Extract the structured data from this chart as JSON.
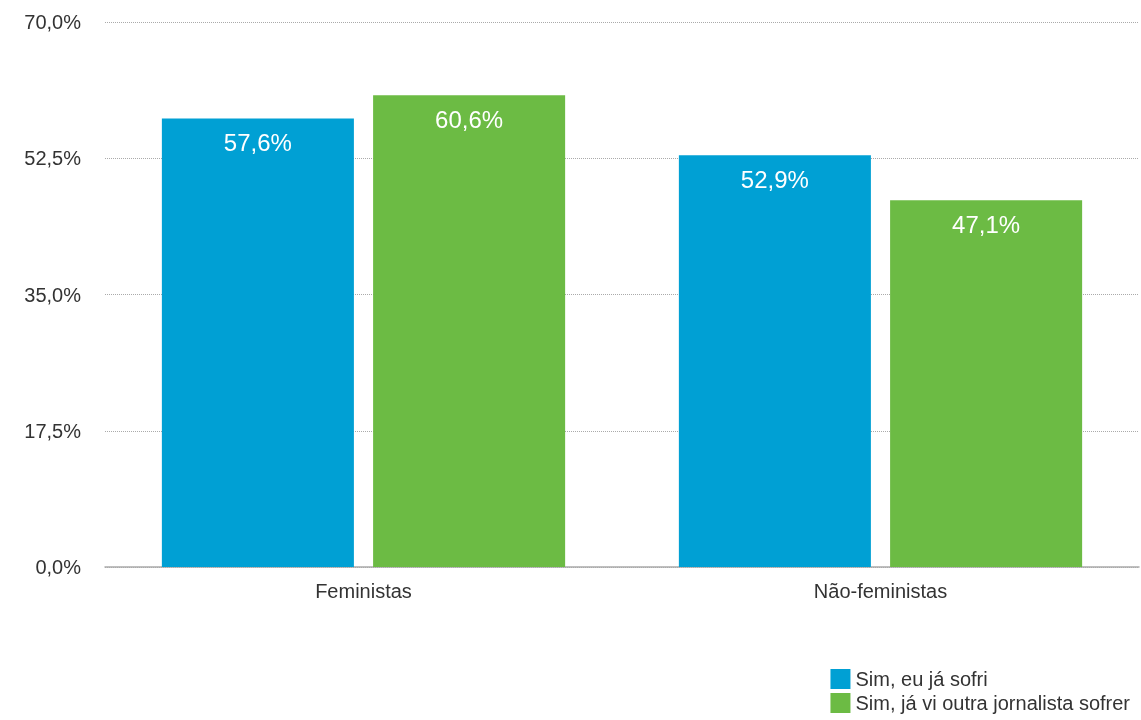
{
  "chart_data": {
    "type": "bar",
    "categories": [
      "Feministas",
      "Não-feministas"
    ],
    "series": [
      {
        "name": "Sim, eu já sofri",
        "color": "#00a0d4",
        "values": [
          57.6,
          52.9
        ],
        "value_labels": [
          "57,6%",
          "52,9%"
        ]
      },
      {
        "name": "Sim, já vi outra jornalista sofrer",
        "color": "#6cbb44",
        "values": [
          60.6,
          47.1
        ],
        "value_labels": [
          "60,6%",
          "47,1%"
        ]
      }
    ],
    "ylim": [
      0,
      70
    ],
    "yticks": [
      {
        "value": 0,
        "label": "0,0%"
      },
      {
        "value": 17.5,
        "label": "17,5%"
      },
      {
        "value": 35,
        "label": "35,0%"
      },
      {
        "value": 52.5,
        "label": "52,5%"
      },
      {
        "value": 70,
        "label": "70,0%"
      }
    ],
    "grid": "y",
    "legend": "bottom right"
  }
}
